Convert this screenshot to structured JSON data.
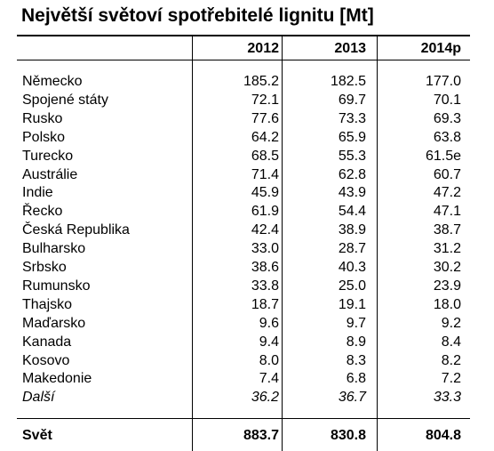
{
  "title": "Největší světoví spotřebitelé lignitu [Mt]",
  "columns": [
    "2012",
    "2013",
    "2014p"
  ],
  "rows": [
    {
      "name": "Německo",
      "values": [
        "185.2",
        "182.5",
        "177.0"
      ]
    },
    {
      "name": "Spojené státy",
      "values": [
        "72.1",
        "69.7",
        "70.1"
      ]
    },
    {
      "name": "Rusko",
      "values": [
        "77.6",
        "73.3",
        "69.3"
      ]
    },
    {
      "name": "Polsko",
      "values": [
        "64.2",
        "65.9",
        "63.8"
      ]
    },
    {
      "name": "Turecko",
      "values": [
        "68.5",
        "55.3",
        "61.5e"
      ]
    },
    {
      "name": "Austrálie",
      "values": [
        "71.4",
        "62.8",
        "60.7"
      ]
    },
    {
      "name": "Indie",
      "values": [
        "45.9",
        "43.9",
        "47.2"
      ]
    },
    {
      "name": "Řecko",
      "values": [
        "61.9",
        "54.4",
        "47.1"
      ]
    },
    {
      "name": "Česká Republika",
      "values": [
        "42.4",
        "38.9",
        "38.7"
      ]
    },
    {
      "name": "Bulharsko",
      "values": [
        "33.0",
        "28.7",
        "31.2"
      ]
    },
    {
      "name": "Srbsko",
      "values": [
        "38.6",
        "40.3",
        "30.2"
      ]
    },
    {
      "name": "Rumunsko",
      "values": [
        "33.8",
        "25.0",
        "23.9"
      ]
    },
    {
      "name": "Thajsko",
      "values": [
        "18.7",
        "19.1",
        "18.0"
      ]
    },
    {
      "name": "Maďarsko",
      "values": [
        "9.6",
        "9.7",
        "9.2"
      ]
    },
    {
      "name": "Kanada",
      "values": [
        "9.4",
        "8.9",
        "8.4"
      ]
    },
    {
      "name": "Kosovo",
      "values": [
        "8.0",
        "8.3",
        "8.2"
      ]
    },
    {
      "name": "Makedonie",
      "values": [
        "7.4",
        "6.8",
        "7.2"
      ]
    },
    {
      "name": "Další",
      "values": [
        "36.2",
        "36.7",
        "33.3"
      ]
    }
  ],
  "total": {
    "name": "Svět",
    "values": [
      "883.7",
      "830.8",
      "804.8"
    ]
  }
}
